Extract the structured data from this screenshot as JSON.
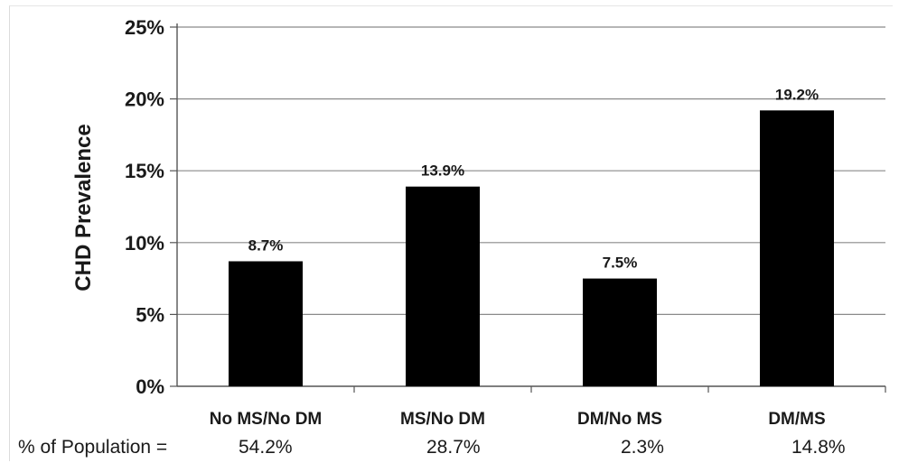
{
  "chart_data": {
    "type": "bar",
    "categories": [
      "No MS/No DM",
      "MS/No DM",
      "DM/No MS",
      "DM/MS"
    ],
    "values": [
      8.7,
      13.9,
      7.5,
      19.2
    ],
    "data_labels": [
      "8.7%",
      "13.9%",
      "7.5%",
      "19.2%"
    ],
    "ylabel": "CHD Prevalence",
    "ylim": [
      0,
      25
    ],
    "yticks": [
      0,
      5,
      10,
      15,
      20,
      25
    ],
    "ytick_labels": [
      "0%",
      "5%",
      "10%",
      "15%",
      "20%",
      "25%"
    ],
    "grid": true,
    "bar_color": "#000000"
  },
  "population": {
    "label": "% of Population =",
    "values": [
      "54.2%",
      "28.7%",
      "2.3%",
      "14.8%"
    ]
  }
}
